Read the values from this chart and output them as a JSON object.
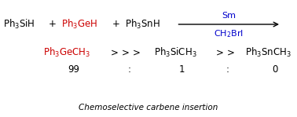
{
  "bg_color": "#ffffff",
  "arrow_label_top": "Sm",
  "arrow_label_top_color": "#0000cc",
  "arrow_label_bottom": "CH$_2$BrI",
  "arrow_label_bottom_color": "#0000cc",
  "caption": "Chemoselective carbene insertion",
  "caption_color": "#000000",
  "figsize": [
    3.78,
    1.49
  ],
  "dpi": 100
}
